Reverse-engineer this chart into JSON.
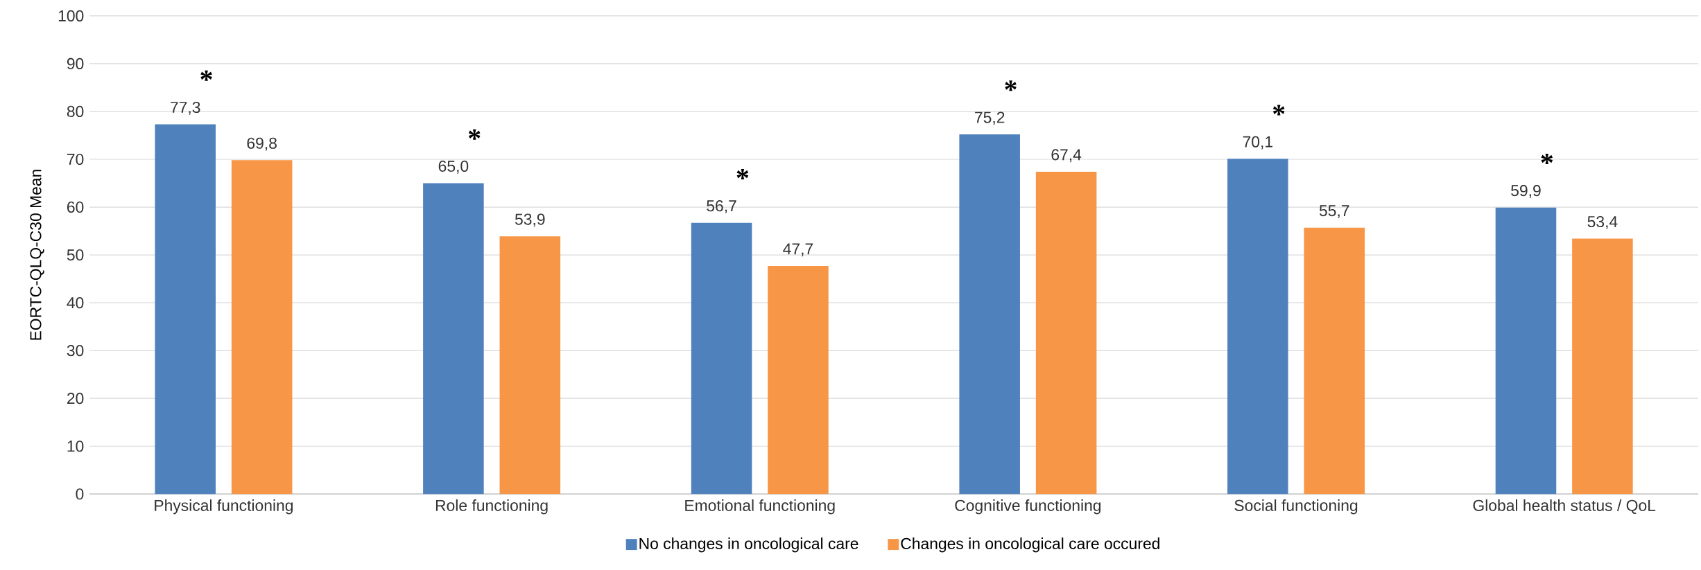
{
  "chart_data": {
    "type": "bar",
    "ylabel": "EORTC-QLQ-C30 Mean",
    "categories": [
      "Physical functioning",
      "Role functioning",
      "Emotional functioning",
      "Cognitive functioning",
      "Social functioning",
      "Global health status / QoL"
    ],
    "series": [
      {
        "name": "No changes in oncological care",
        "color": "#4f81bd",
        "values": [
          77.3,
          65.0,
          56.7,
          75.2,
          70.1,
          59.9
        ],
        "value_labels": [
          "77,3",
          "65,0",
          "56,7",
          "75,2",
          "70,1",
          "59,9"
        ]
      },
      {
        "name": "Changes in oncological care occured",
        "color": "#f79646",
        "values": [
          69.8,
          53.9,
          47.7,
          67.4,
          55.7,
          53.4
        ],
        "value_labels": [
          "69,8",
          "53,9",
          "47,7",
          "67,4",
          "55,7",
          "53,4"
        ]
      }
    ],
    "annotations": [
      "*",
      "*",
      "*",
      "*",
      "*",
      "*"
    ],
    "ylim": [
      0,
      100
    ],
    "yticks": [
      0,
      10,
      20,
      30,
      40,
      50,
      60,
      70,
      80,
      90,
      100
    ],
    "grid": "y",
    "legend": "bottom"
  }
}
